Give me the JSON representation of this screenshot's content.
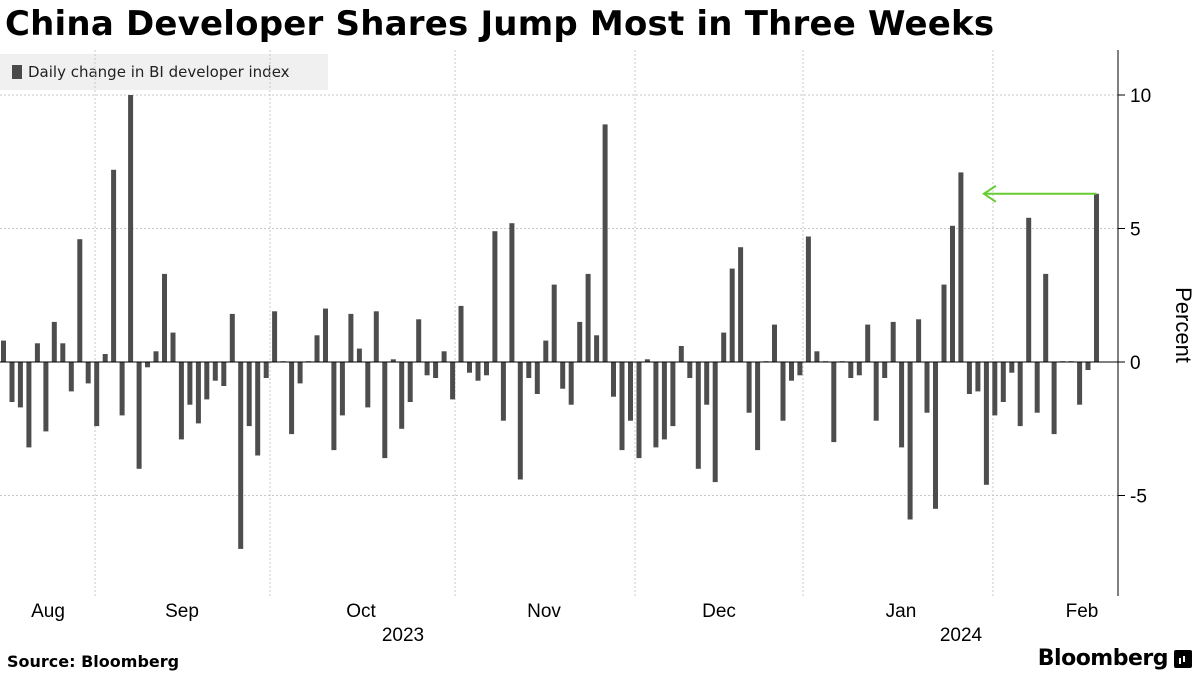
{
  "chart_data": {
    "type": "bar",
    "title": "China Developer Shares Jump Most in Three Weeks",
    "legend": [
      "Daily change in BI developer index"
    ],
    "ylabel": "Percent",
    "xlabel": "",
    "ylim": [
      -8.5,
      12
    ],
    "yticks": [
      10,
      5,
      0,
      -5
    ],
    "ytick_labels": [
      "10",
      "5",
      "0",
      "-5"
    ],
    "grid": true,
    "month_labels": [
      "Aug",
      "Sep",
      "Oct",
      "Nov",
      "Dec",
      "Jan",
      "Feb"
    ],
    "month_gridlines": [
      "Sep",
      "Oct",
      "Nov",
      "Dec",
      "Jan",
      "Feb"
    ],
    "year_labels": [
      "2023",
      "2024"
    ],
    "annotation": "arrow pointing left from the final bar to the previous high in January",
    "series": [
      {
        "name": "Daily change in BI developer index",
        "values": [
          0.8,
          -1.5,
          -1.7,
          -3.2,
          0.7,
          -2.6,
          1.5,
          0.7,
          -1.1,
          4.6,
          -0.8,
          -2.4,
          0.3,
          7.2,
          -2.0,
          10.0,
          -4.0,
          -0.2,
          0.4,
          3.3,
          1.1,
          -2.9,
          -1.6,
          -2.3,
          -1.4,
          -0.7,
          -0.9,
          1.8,
          -7.0,
          -2.4,
          -3.5,
          -0.6,
          1.9,
          0.0,
          -2.7,
          -0.8,
          0.0,
          1.0,
          2.0,
          -3.3,
          -2.0,
          1.8,
          0.5,
          -1.7,
          1.9,
          -3.6,
          0.1,
          -2.5,
          -1.5,
          1.6,
          -0.5,
          -0.6,
          0.4,
          -1.4,
          2.1,
          -0.4,
          -0.7,
          -0.5,
          4.9,
          -2.2,
          5.2,
          -4.4,
          -0.6,
          -1.2,
          0.8,
          2.9,
          -1.0,
          -1.6,
          1.5,
          3.3,
          1.0,
          8.9,
          -1.3,
          -3.3,
          -2.2,
          -3.6,
          0.1,
          -3.2,
          -2.9,
          -2.4,
          0.6,
          -0.6,
          -4.0,
          -1.6,
          -4.5,
          1.1,
          3.5,
          4.3,
          -1.9,
          -3.3,
          0.0,
          1.4,
          -2.2,
          -0.7,
          -0.5,
          4.7,
          0.4,
          0.0,
          -3.0,
          0.0,
          -0.6,
          -0.5,
          1.4,
          -2.2,
          -0.6,
          1.5,
          -3.2,
          -5.9,
          1.6,
          -1.9,
          -5.5,
          2.9,
          5.1,
          7.1,
          -1.2,
          -1.1,
          -4.6,
          -2.0,
          -1.5,
          -0.4,
          -2.4,
          5.4,
          -1.9,
          3.3,
          -2.7,
          0.0,
          0.0,
          -1.6,
          -0.3,
          6.3
        ]
      }
    ]
  },
  "source_label": "Source:",
  "source_name": "Bloomberg",
  "brand_name": "Bloomberg"
}
